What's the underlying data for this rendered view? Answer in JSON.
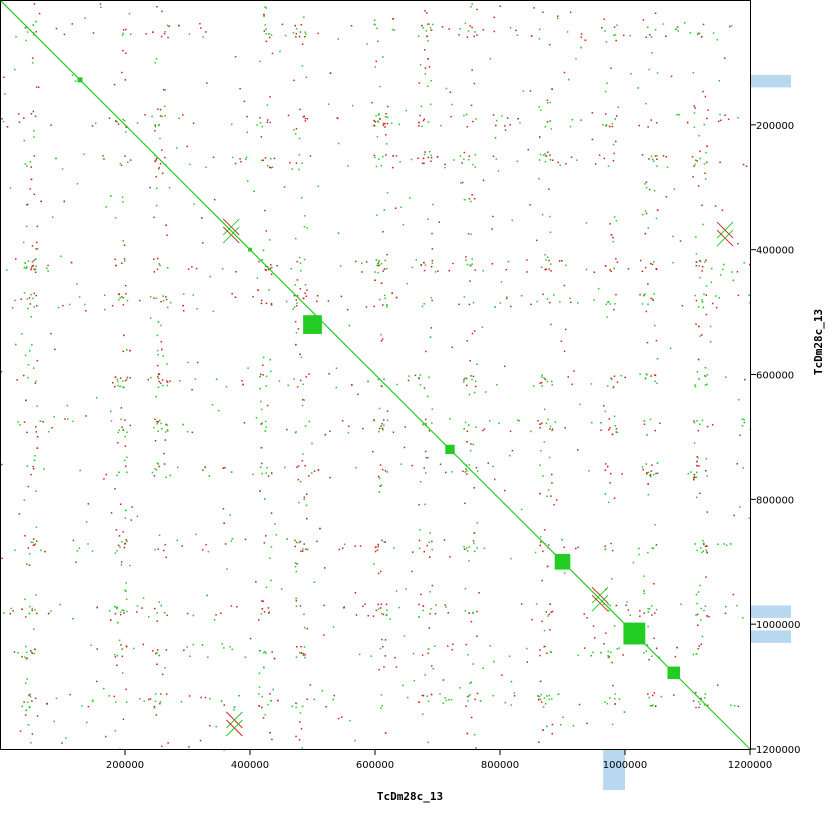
{
  "chart_data": {
    "type": "scatter",
    "title": "",
    "xlabel": "TcDm28c_13",
    "ylabel": "TcDm28c_13",
    "xlim": [
      0,
      1200000
    ],
    "ylim": [
      0,
      1200000
    ],
    "y_inverted": true,
    "grid": false,
    "x_ticks": [
      200000,
      400000,
      600000,
      800000,
      1000000,
      1200000
    ],
    "y_ticks": [
      200000,
      400000,
      600000,
      800000,
      1000000,
      1200000
    ],
    "x_tick_labels": [
      "200000",
      "400000",
      "600000",
      "800000",
      "1000000",
      "1200000"
    ],
    "y_tick_labels": [
      "200000",
      "400000",
      "600000",
      "800000",
      "1000000",
      "1200000"
    ],
    "colors": {
      "forward": "#22cc22",
      "reverse": "#cc2222",
      "annotation": "#b8d8f0"
    },
    "series": [
      {
        "name": "",
        "color": "#22cc22",
        "segments": [
          [
            0,
            0,
            1200000,
            1200000
          ]
        ],
        "blocks": [
          [
            128000,
            128000,
            8000
          ],
          [
            400000,
            400000,
            6000
          ],
          [
            500000,
            520000,
            30000
          ],
          [
            1015000,
            1015000,
            35000
          ],
          [
            1078000,
            1078000,
            20000
          ],
          [
            720000,
            720000,
            15000
          ],
          [
            900000,
            900000,
            25000
          ]
        ]
      },
      {
        "name": "",
        "color": "#cc2222",
        "cross_motifs": [
          [
            370000,
            370000
          ],
          [
            1160000,
            375000
          ],
          [
            375000,
            1160000
          ],
          [
            960000,
            960000
          ]
        ]
      }
    ],
    "annotation_bands_y": [
      [
        970000,
        990000
      ],
      [
        1010000,
        1030000
      ],
      [
        120000,
        140000
      ]
    ],
    "annotation_bands_x": [
      [
        965000,
        1000000
      ]
    ]
  }
}
